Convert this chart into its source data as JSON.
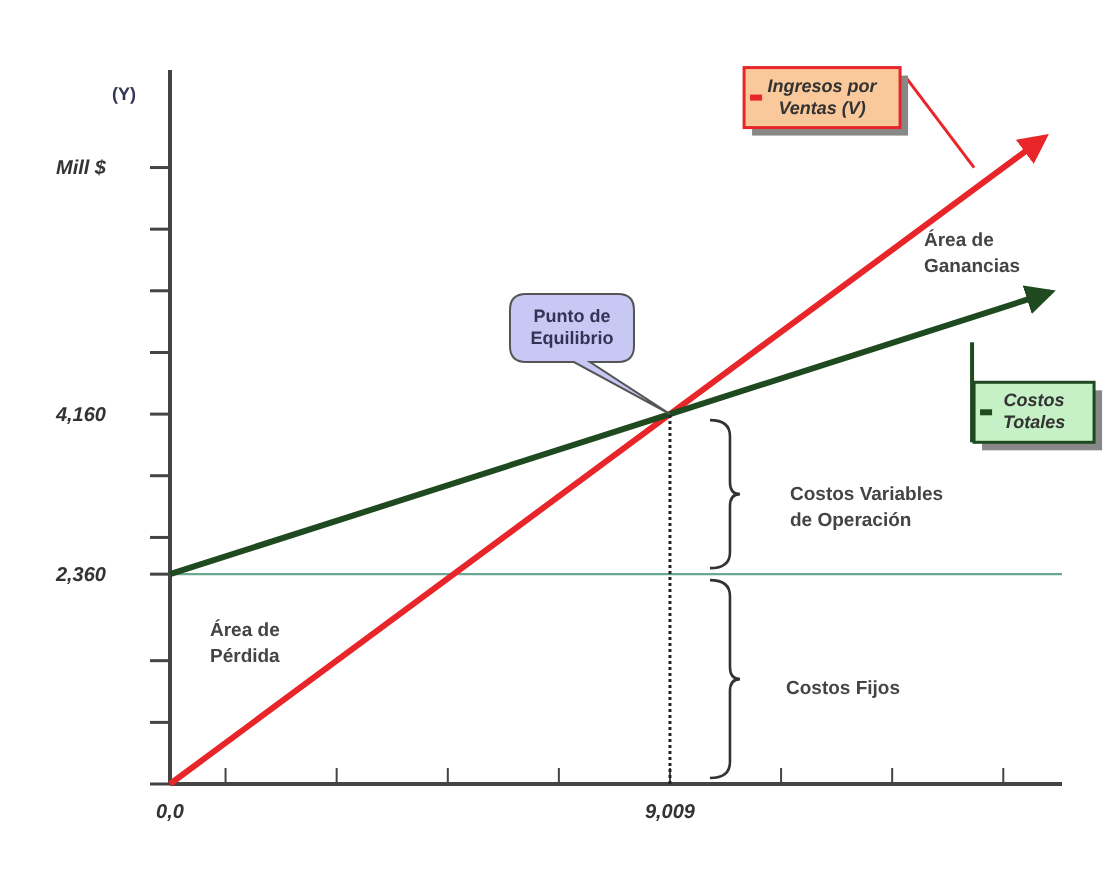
{
  "chart_data": {
    "type": "line",
    "ylabel": "(Y)",
    "xlim": [
      0,
      16073
    ],
    "ylim": [
      0,
      8030
    ],
    "xticks": [
      {
        "value": 0,
        "label": "0,0"
      },
      {
        "value": 1001,
        "label": null
      },
      {
        "value": 3003,
        "label": null
      },
      {
        "value": 5006,
        "label": null
      },
      {
        "value": 7007,
        "label": null
      },
      {
        "value": 9009,
        "label": "9,009"
      },
      {
        "value": 11011,
        "label": null
      },
      {
        "value": 13013,
        "label": null
      },
      {
        "value": 15015,
        "label": null
      }
    ],
    "yticks": [
      {
        "value": 0,
        "label": null
      },
      {
        "value": 693,
        "label": null
      },
      {
        "value": 1387,
        "label": null
      },
      {
        "value": 2360,
        "label": "2,360"
      },
      {
        "value": 2773,
        "label": null
      },
      {
        "value": 3467,
        "label": null
      },
      {
        "value": 4160,
        "label": "4,160"
      },
      {
        "value": 4853,
        "label": null
      },
      {
        "value": 5547,
        "label": null
      },
      {
        "value": 6240,
        "label": null
      },
      {
        "value": 6933,
        "label": "Mill $"
      }
    ],
    "series": [
      {
        "name": "Ingresos por Ventas (V)",
        "color": "#e8262a",
        "x": [
          0,
          9009,
          15750
        ],
        "values": [
          0,
          4160,
          7270
        ]
      },
      {
        "name": "Costos Totales",
        "color": "#1f4a1f",
        "x": [
          0,
          9009,
          15858
        ],
        "values": [
          2360,
          4160,
          5530
        ]
      },
      {
        "color": "#222222",
        "x": [
          9009,
          9009
        ],
        "values": [
          0,
          4160
        ],
        "line_style": "dotted"
      }
    ],
    "ref_lines": [
      {
        "axis": "y",
        "value": 2360,
        "color": "#6aa890"
      }
    ],
    "annotations": [
      "Punto de Equilibrio",
      "Área de Ganancias",
      "Área de Pérdida",
      "Costos Variables de Operación",
      "Costos Fijos"
    ],
    "grid": false,
    "legend": "right",
    "marker": "none"
  }
}
